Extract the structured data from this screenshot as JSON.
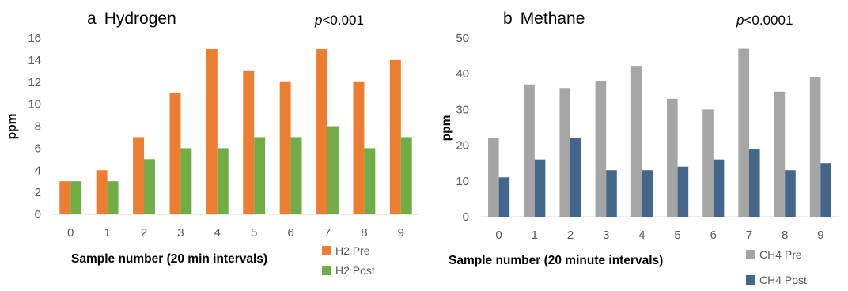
{
  "chart_data": [
    {
      "type": "bar",
      "panel_letter": "a",
      "title": "Hydrogen",
      "p_value": {
        "label": "p",
        "rest": "<0.001"
      },
      "xlabel": "Sample number (20 min intervals)",
      "ylabel": "ppm",
      "ylim": [
        0,
        16
      ],
      "yticks": [
        0,
        2,
        4,
        6,
        8,
        10,
        12,
        14,
        16
      ],
      "categories": [
        "0",
        "1",
        "2",
        "3",
        "4",
        "5",
        "6",
        "7",
        "8",
        "9"
      ],
      "series": [
        {
          "name": "H2 Pre",
          "color": "#ED7D31",
          "values": [
            3,
            4,
            7,
            11,
            15,
            13,
            12,
            15,
            12,
            14
          ]
        },
        {
          "name": "H2 Post",
          "color": "#70AD47",
          "values": [
            3,
            3,
            5,
            6,
            6,
            7,
            7,
            8,
            6,
            7
          ]
        }
      ],
      "legend_position": "bottom-right",
      "grid": false
    },
    {
      "type": "bar",
      "panel_letter": "b",
      "title": "Methane",
      "p_value": {
        "label": "p",
        "rest": "<0.0001"
      },
      "xlabel": "Sample number (20 minute intervals)",
      "ylabel": "ppm",
      "ylim": [
        0,
        50
      ],
      "yticks": [
        0,
        10,
        20,
        30,
        40,
        50
      ],
      "categories": [
        "0",
        "1",
        "2",
        "3",
        "4",
        "5",
        "6",
        "7",
        "8",
        "9"
      ],
      "series": [
        {
          "name": "CH4 Pre",
          "color": "#A5A5A5",
          "values": [
            22,
            37,
            36,
            38,
            42,
            33,
            30,
            47,
            35,
            39
          ]
        },
        {
          "name": "CH4 Post",
          "color": "#44668A",
          "values": [
            11,
            16,
            22,
            13,
            13,
            14,
            16,
            19,
            13,
            15
          ]
        }
      ],
      "legend_position": "bottom-right",
      "grid": false
    }
  ]
}
